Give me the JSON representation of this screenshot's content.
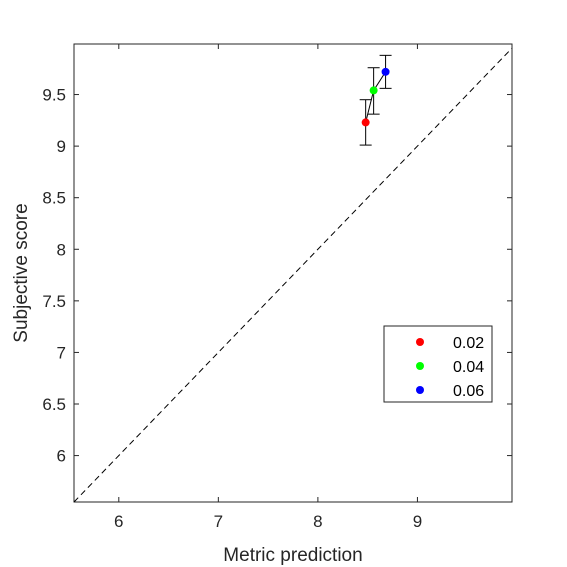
{
  "chart_data": {
    "type": "scatter",
    "title": "",
    "xlabel": "Metric prediction",
    "ylabel": "Subjective score",
    "xlim": [
      5.55,
      9.95
    ],
    "ylim": [
      5.55,
      9.99
    ],
    "xticks": [
      6,
      7,
      8,
      9
    ],
    "xtick_labels": [
      "6",
      "7",
      "8",
      "9"
    ],
    "yticks": [
      6,
      6.5,
      7,
      7.5,
      8,
      8.5,
      9,
      9.5
    ],
    "ytick_labels": [
      "6",
      "6.5",
      "7",
      "7.5",
      "8",
      "8.5",
      "9",
      "9.5"
    ],
    "grid": false,
    "legend_position": "lower-right",
    "reference_line": {
      "style": "dashed",
      "from": [
        5.55,
        5.55
      ],
      "to": [
        9.95,
        9.95
      ],
      "color": "#000000"
    },
    "connector_color": "#000000",
    "series": [
      {
        "name": "0.02",
        "color": "#ff0000",
        "x": 8.48,
        "y": 9.23,
        "err_low": 9.01,
        "err_high": 9.45
      },
      {
        "name": "0.04",
        "color": "#00ff00",
        "x": 8.56,
        "y": 9.54,
        "err_low": 9.31,
        "err_high": 9.76
      },
      {
        "name": "0.06",
        "color": "#0000ff",
        "x": 8.68,
        "y": 9.72,
        "err_low": 9.56,
        "err_high": 9.88
      }
    ]
  }
}
